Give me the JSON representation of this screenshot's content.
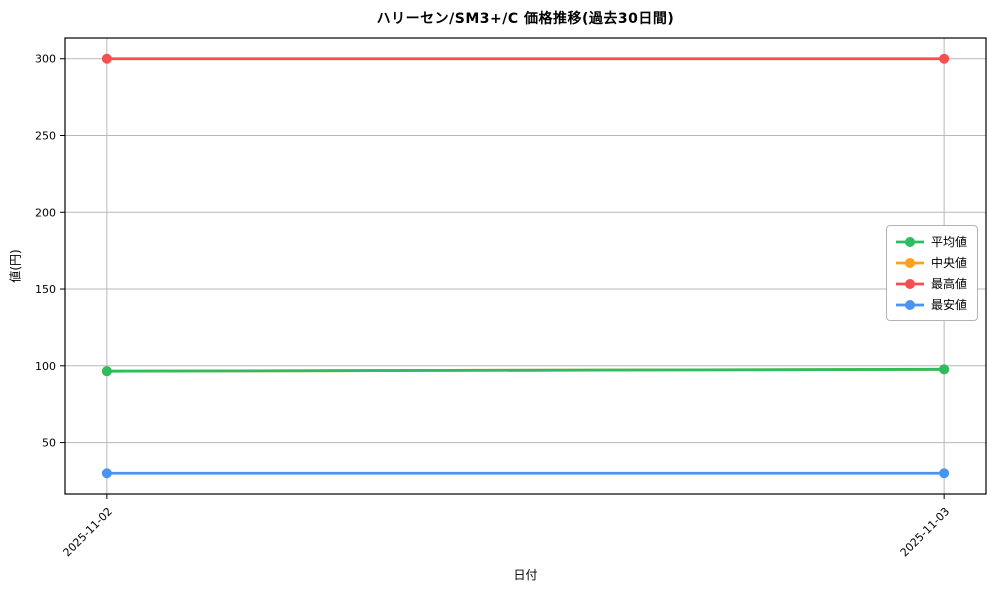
{
  "chart_data": {
    "type": "line",
    "title": "ハリーセン/SM3+/C 価格推移(過去30日間)",
    "xlabel": "日付",
    "ylabel": "値(円)",
    "categories": [
      "2025-11-02",
      "2025-11-03"
    ],
    "series": [
      {
        "key": "average",
        "name": "平均値",
        "color": "#2dbd60",
        "values": [
          96.5,
          97.7
        ],
        "z": 2
      },
      {
        "key": "median",
        "name": "中央値",
        "color": "#ffa01a",
        "values": [
          96.5,
          97.7
        ],
        "z": 1,
        "note": "hidden behind average line"
      },
      {
        "key": "max",
        "name": "最高値",
        "color": "#f94e4e",
        "values": [
          300,
          300
        ],
        "z": 3
      },
      {
        "key": "min",
        "name": "最安値",
        "color": "#4a94f1",
        "values": [
          30,
          30
        ],
        "z": 4
      }
    ],
    "yticks": [
      50,
      100,
      150,
      200,
      250,
      300
    ],
    "ylim": [
      16.5,
      313.5
    ],
    "grid": true,
    "legend_position": "center right",
    "x_tick_rotation_deg": 45
  }
}
